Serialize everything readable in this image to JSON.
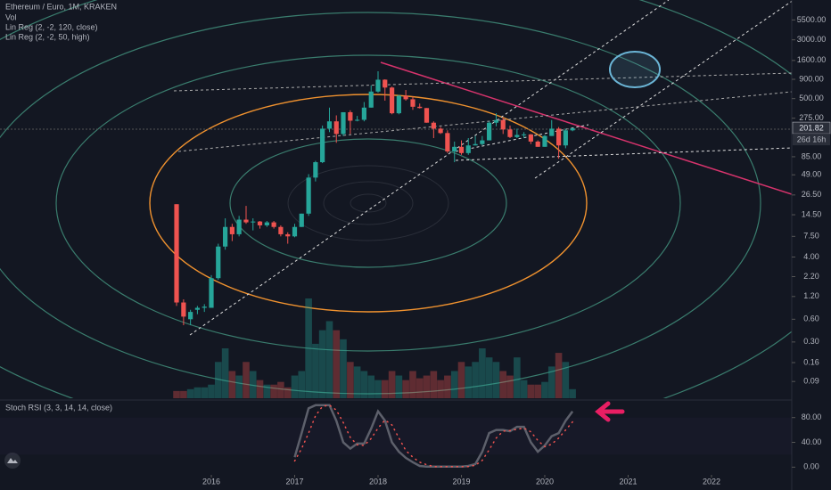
{
  "chart_data": [
    {
      "type": "candlestick",
      "title": "Ethereum / Euro, 1M, KRAKEN",
      "indicators": [
        "Vol",
        "Lin Reg (2, -2, 120, close)",
        "Lin Reg (2, -2, 50, high)"
      ],
      "countdown": "26d 16h",
      "log": true,
      "up_color": "#26a69a",
      "down_color": "#ef5350",
      "x": [
        2015.583,
        2015.667,
        2015.75,
        2015.833,
        2015.917,
        2016,
        2016.083,
        2016.167,
        2016.25,
        2016.333,
        2016.417,
        2016.5,
        2016.583,
        2016.667,
        2016.75,
        2016.833,
        2016.917,
        2017,
        2017.083,
        2017.167,
        2017.25,
        2017.333,
        2017.417,
        2017.5,
        2017.583,
        2017.667,
        2017.75,
        2017.833,
        2017.917,
        2018,
        2018.083,
        2018.167,
        2018.25,
        2018.333,
        2018.417,
        2018.5,
        2018.583,
        2018.667,
        2018.75,
        2018.833,
        2018.917,
        2019,
        2019.083,
        2019.167,
        2019.25,
        2019.333,
        2019.417,
        2019.5,
        2019.583,
        2019.667,
        2019.75,
        2019.833,
        2019.917,
        2020,
        2020.083,
        2020.167,
        2020.25,
        2020.333
      ],
      "open": [
        20,
        1.0,
        0.6,
        0.8,
        0.85,
        0.85,
        2.1,
        5.5,
        10,
        8,
        12.5,
        11.5,
        11.8,
        10.5,
        11.5,
        10,
        8,
        7.5,
        10,
        15,
        45,
        72,
        200,
        250,
        170,
        330,
        255,
        262,
        380,
        620,
        890,
        700,
        320,
        545,
        490,
        390,
        375,
        240,
        200,
        175,
        100,
        115,
        95,
        120,
        125,
        140,
        240,
        260,
        195,
        155,
        165,
        168,
        135,
        115,
        160,
        200,
        120,
        190
      ],
      "high": [
        20,
        1.1,
        0.8,
        0.9,
        0.95,
        2.3,
        6,
        13,
        11,
        14,
        19,
        13,
        12,
        12,
        12,
        10.5,
        8.5,
        11,
        15,
        50,
        75,
        220,
        380,
        300,
        330,
        350,
        295,
        450,
        750,
        1150,
        900,
        720,
        560,
        650,
        530,
        430,
        375,
        250,
        210,
        190,
        135,
        140,
        150,
        160,
        160,
        250,
        320,
        280,
        220,
        200,
        180,
        170,
        140,
        165,
        260,
        210,
        200,
        205
      ],
      "low": [
        0.9,
        0.5,
        0.5,
        0.7,
        0.75,
        0.85,
        2,
        5,
        6.5,
        7.5,
        11,
        9,
        9.5,
        10,
        9.5,
        7.5,
        6,
        7.3,
        10,
        14,
        40,
        70,
        180,
        130,
        160,
        170,
        250,
        250,
        380,
        600,
        470,
        310,
        310,
        470,
        355,
        370,
        240,
        150,
        170,
        95,
        72,
        90,
        90,
        120,
        120,
        140,
        215,
        170,
        150,
        150,
        150,
        125,
        115,
        115,
        160,
        80,
        110,
        185
      ],
      "close": [
        1.0,
        0.65,
        0.75,
        0.85,
        0.88,
        2.1,
        5.5,
        10,
        8,
        12.5,
        11.5,
        11.8,
        10.5,
        11.5,
        10,
        8,
        7.5,
        10,
        15,
        45,
        72,
        200,
        250,
        170,
        330,
        255,
        262,
        380,
        620,
        890,
        700,
        320,
        545,
        490,
        390,
        375,
        240,
        200,
        175,
        100,
        115,
        95,
        120,
        125,
        140,
        240,
        260,
        195,
        155,
        165,
        168,
        135,
        115,
        160,
        200,
        120,
        190,
        201.82
      ],
      "volume": [
        8,
        8,
        10,
        12,
        12,
        15,
        40,
        55,
        30,
        25,
        40,
        30,
        20,
        15,
        15,
        18,
        12,
        25,
        30,
        110,
        60,
        75,
        85,
        75,
        65,
        40,
        35,
        30,
        25,
        20,
        20,
        30,
        25,
        20,
        30,
        22,
        25,
        30,
        20,
        25,
        30,
        40,
        35,
        40,
        55,
        45,
        40,
        30,
        25,
        45,
        20,
        15,
        15,
        18,
        35,
        50,
        40,
        10
      ],
      "xlim": [
        2013.465,
        2022.963
      ],
      "xticks": [
        2016,
        2017,
        2018,
        2019,
        2020,
        2021,
        2022
      ],
      "ylim": [
        0.054,
        10100
      ],
      "yticks": [
        0.09,
        0.16,
        {
          "value": 0.3,
          "label": "0.30"
        },
        {
          "value": 0.6,
          "label": "0.60"
        },
        {
          "value": 1.2,
          "label": "1.20"
        },
        {
          "value": 2.2,
          "label": "2.20"
        },
        {
          "value": 4,
          "label": "4.00"
        },
        {
          "value": 7.5,
          "label": "7.50"
        },
        {
          "value": 14.5,
          "label": "14.50"
        },
        {
          "value": 26.5,
          "label": "26.50"
        },
        {
          "value": 49,
          "label": "49.00"
        },
        {
          "value": 85,
          "label": "85.00"
        },
        {
          "value": 275,
          "label": "275.00"
        },
        {
          "value": 500,
          "label": "500.00"
        },
        {
          "value": 900,
          "label": "900.00"
        },
        {
          "value": 1600,
          "label": "1600.00"
        },
        {
          "value": 3000,
          "label": "3000.00"
        },
        {
          "value": 5500,
          "label": "5500.00"
        }
      ]
    },
    {
      "type": "line",
      "title": "Stoch RSI (3, 3, 14, 14, close)",
      "x": [
        2017,
        2017.083,
        2017.167,
        2017.25,
        2017.333,
        2017.417,
        2017.5,
        2017.583,
        2017.667,
        2017.75,
        2017.833,
        2017.917,
        2018,
        2018.083,
        2018.167,
        2018.25,
        2018.333,
        2018.417,
        2018.5,
        2018.583,
        2018.667,
        2018.75,
        2018.833,
        2018.917,
        2019,
        2019.083,
        2019.167,
        2019.25,
        2019.333,
        2019.417,
        2019.5,
        2019.583,
        2019.667,
        2019.75,
        2019.833,
        2019.917,
        2020,
        2020.083,
        2020.167,
        2020.25,
        2020.333
      ],
      "series": [
        {
          "color": "#5d606b",
          "values": [
            16,
            55,
            95,
            100,
            100,
            100,
            75,
            40,
            30,
            38,
            38,
            62,
            90,
            75,
            40,
            25,
            15,
            8,
            2,
            1,
            1,
            1,
            1,
            1,
            1,
            2,
            5,
            25,
            55,
            60,
            60,
            58,
            65,
            65,
            40,
            25,
            35,
            50,
            55,
            75,
            90
          ]
        },
        {
          "color": "#ef5350",
          "values": [
            10,
            30,
            55,
            83,
            98,
            100,
            92,
            72,
            48,
            36,
            35,
            46,
            63,
            76,
            68,
            47,
            27,
            16,
            8,
            4,
            1,
            1,
            1,
            1,
            1,
            1,
            3,
            11,
            28,
            47,
            58,
            59,
            61,
            63,
            57,
            43,
            33,
            37,
            47,
            60,
            73
          ]
        }
      ],
      "ylim": [
        -11,
        104
      ],
      "yticks": [
        {
          "value": 80,
          "label": "80.00"
        },
        {
          "value": 40,
          "label": "40.00"
        },
        {
          "value": 0,
          "label": "0.00"
        }
      ]
    }
  ]
}
